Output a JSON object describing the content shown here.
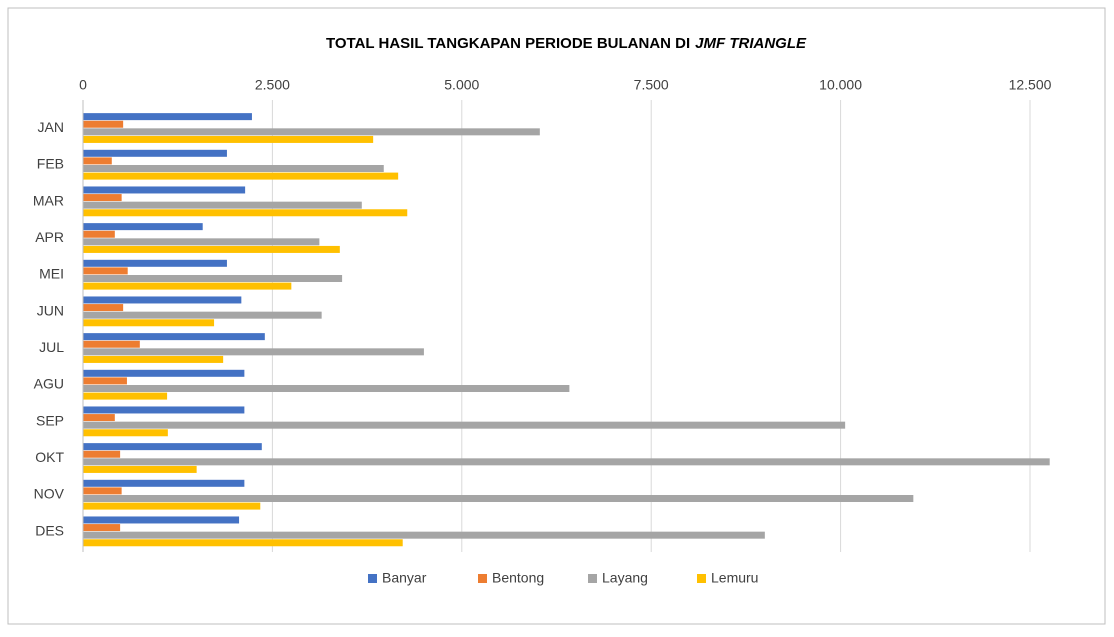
{
  "chart_data": {
    "type": "bar",
    "orientation": "horizontal",
    "title": [
      "TOTAL HASIL TANGKAPAN PERIODE BULANAN DI",
      "JMF TRIANGLE"
    ],
    "categories": [
      "JAN",
      "FEB",
      "MAR",
      "APR",
      "MEI",
      "JUN",
      "JUL",
      "AGU",
      "SEP",
      "OKT",
      "NOV",
      "DES"
    ],
    "series": [
      {
        "name": "Banyar",
        "color": "#4472c4",
        "values": [
          2230,
          1900,
          2140,
          1580,
          1900,
          2090,
          2400,
          2130,
          2130,
          2360,
          2130,
          2060
        ]
      },
      {
        "name": "Bentong",
        "color": "#ed7d31",
        "values": [
          530,
          380,
          510,
          420,
          590,
          530,
          750,
          580,
          420,
          490,
          510,
          490
        ]
      },
      {
        "name": "Layang",
        "color": "#a5a5a5",
        "values": [
          6030,
          3970,
          3680,
          3120,
          3420,
          3150,
          4500,
          6420,
          10060,
          12760,
          10960,
          9000
        ]
      },
      {
        "name": "Lemuru",
        "color": "#ffc000",
        "values": [
          3830,
          4160,
          4280,
          3390,
          2750,
          1730,
          1850,
          1110,
          1120,
          1500,
          2340,
          4220
        ]
      }
    ],
    "xlim": [
      0,
      12500
    ],
    "xticks": [
      0,
      {
        "value": 2500,
        "label": "2.500"
      },
      {
        "value": 5000,
        "label": "5.000"
      },
      {
        "value": 7500,
        "label": "7.500"
      },
      {
        "value": 10000,
        "label": "10.000"
      },
      {
        "value": 12500,
        "label": "12.500"
      }
    ],
    "grid": true,
    "legend": "bottom"
  }
}
